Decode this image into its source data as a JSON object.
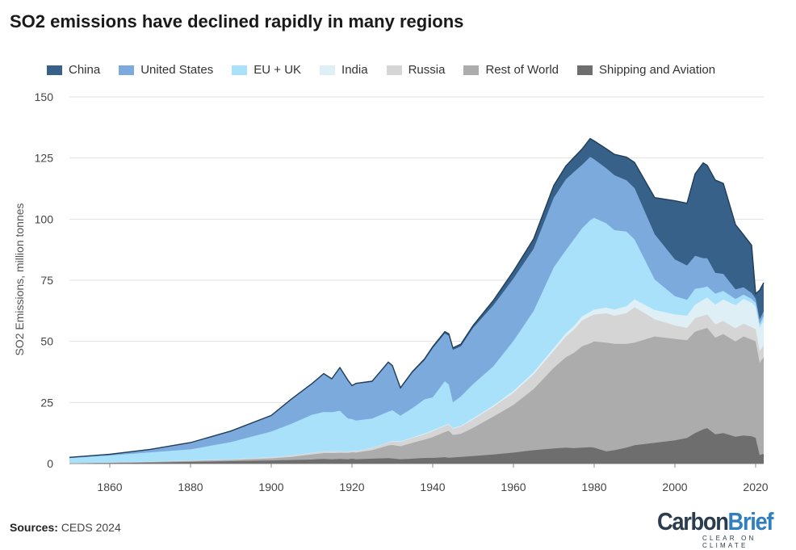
{
  "title": "SO2 emissions have declined rapidly in many regions",
  "source": {
    "label": "Sources:",
    "text": "CEDS 2024"
  },
  "logo": {
    "text_carbon": "Carbon",
    "text_brief": "Brief",
    "tagline": "CLEAR ON CLIMATE"
  },
  "chart_data": {
    "type": "area",
    "stacked": true,
    "title": "SO2 emissions have declined rapidly in many regions",
    "xlabel": "",
    "ylabel": "SO2 Emissions, million tonnes",
    "xlim": [
      1850,
      2022
    ],
    "ylim": [
      0,
      150
    ],
    "yticks": [
      0,
      25,
      50,
      75,
      100,
      125,
      150
    ],
    "xticks": [
      1860,
      1880,
      1900,
      1920,
      1940,
      1960,
      1980,
      2000,
      2020
    ],
    "grid": "horizontal",
    "legend_position": "top",
    "x": [
      1850,
      1860,
      1870,
      1880,
      1890,
      1900,
      1905,
      1910,
      1913,
      1915,
      1917,
      1919,
      1920,
      1921,
      1925,
      1929,
      1930,
      1932,
      1935,
      1938,
      1940,
      1943,
      1944,
      1945,
      1947,
      1950,
      1955,
      1960,
      1965,
      1970,
      1973,
      1975,
      1977,
      1979,
      1980,
      1983,
      1985,
      1988,
      1990,
      1995,
      2000,
      2003,
      2005,
      2007,
      2008,
      2010,
      2012,
      2015,
      2017,
      2019,
      2020,
      2021,
      2022
    ],
    "series": [
      {
        "name": "Shipping and Aviation",
        "color": "#6e6e6e",
        "values": [
          0.1,
          0.2,
          0.4,
          0.7,
          1.0,
          1.3,
          1.5,
          1.7,
          1.9,
          1.8,
          1.9,
          1.8,
          2.0,
          1.8,
          2.0,
          2.2,
          2.1,
          1.8,
          2.0,
          2.3,
          2.3,
          2.6,
          2.4,
          2.5,
          2.7,
          3.1,
          3.7,
          4.5,
          5.5,
          6.2,
          6.5,
          6.3,
          6.5,
          6.7,
          6.5,
          5.0,
          5.5,
          6.5,
          7.5,
          8.5,
          9.5,
          10.5,
          12.5,
          14.0,
          14.5,
          12.0,
          12.5,
          11.0,
          11.5,
          11.2,
          10.5,
          3.5,
          4.0
        ]
      },
      {
        "name": "Rest of World",
        "color": "#acacac",
        "values": [
          0.1,
          0.2,
          0.3,
          0.4,
          0.5,
          0.8,
          1.2,
          2.0,
          2.4,
          2.5,
          2.5,
          2.6,
          2.6,
          2.7,
          3.5,
          5.2,
          5.5,
          5.3,
          6.5,
          7.5,
          8.5,
          10.3,
          11.0,
          9.2,
          9.5,
          11.5,
          15.5,
          19.5,
          25.0,
          33.0,
          37.0,
          39.0,
          41.5,
          42.5,
          43.5,
          44.5,
          43.5,
          42.5,
          42.0,
          43.5,
          41.5,
          40.0,
          41.5,
          41.0,
          41.0,
          39.5,
          40.5,
          39.0,
          40.5,
          39.5,
          39.5,
          37.8,
          39.5
        ]
      },
      {
        "name": "Russia",
        "color": "#d5d5d5",
        "values": [
          0.05,
          0.1,
          0.1,
          0.2,
          0.3,
          0.4,
          0.5,
          0.6,
          0.7,
          0.6,
          0.6,
          0.4,
          0.5,
          0.5,
          0.8,
          1.2,
          1.5,
          1.8,
          2.0,
          2.2,
          2.5,
          2.5,
          2.6,
          2.5,
          3.0,
          3.5,
          4.0,
          5.0,
          6.0,
          7.0,
          8.5,
          9.5,
          10.5,
          11.0,
          11.0,
          12.0,
          11.5,
          12.5,
          14.5,
          7.0,
          5.5,
          5.0,
          5.5,
          5.5,
          5.5,
          5.5,
          5.3,
          5.3,
          5.3,
          5.1,
          5.0,
          4.8,
          4.8
        ]
      },
      {
        "name": "India",
        "color": "#def0f6",
        "values": [
          0.0,
          0.0,
          0.0,
          0.0,
          0.0,
          0.1,
          0.1,
          0.1,
          0.1,
          0.1,
          0.1,
          0.1,
          0.1,
          0.1,
          0.1,
          0.1,
          0.2,
          0.2,
          0.2,
          0.3,
          0.3,
          0.3,
          0.3,
          0.3,
          0.3,
          0.4,
          0.5,
          0.7,
          0.9,
          1.1,
          1.3,
          1.5,
          1.7,
          1.8,
          2.0,
          2.3,
          2.5,
          2.9,
          3.2,
          3.8,
          4.5,
          5.0,
          5.5,
          6.5,
          7.0,
          8.0,
          8.8,
          9.5,
          10.0,
          10.0,
          9.2,
          9.5,
          10.3
        ]
      },
      {
        "name": "EU + UK",
        "color": "#a9e1fb",
        "values": [
          2.0,
          2.8,
          3.8,
          4.5,
          7.0,
          10.5,
          13.0,
          15.5,
          16.0,
          16.0,
          16.5,
          13.5,
          13.0,
          12.5,
          12.0,
          12.5,
          12.5,
          10.5,
          12.0,
          14.0,
          13.5,
          18.0,
          16.0,
          10.5,
          12.0,
          14.0,
          16.0,
          20.5,
          25.0,
          33.0,
          34.0,
          35.5,
          36.0,
          37.5,
          37.5,
          34.5,
          32.5,
          30.5,
          24.5,
          12.5,
          7.5,
          6.5,
          6.5,
          5.0,
          4.5,
          4.5,
          3.5,
          2.5,
          1.8,
          1.6,
          1.5,
          1.5,
          1.8
        ]
      },
      {
        "name": "United States",
        "color": "#7daadc",
        "values": [
          0.3,
          0.5,
          1.2,
          2.8,
          4.5,
          6.5,
          10.0,
          12.5,
          15.5,
          13.5,
          17.5,
          15.5,
          13.5,
          15.0,
          15.0,
          20.0,
          18.0,
          11.0,
          14.5,
          16.0,
          20.0,
          19.5,
          20.0,
          21.5,
          20.5,
          23.0,
          25.0,
          25.5,
          25.5,
          28.5,
          29.0,
          27.5,
          26.0,
          26.0,
          24.0,
          22.5,
          22.5,
          21.0,
          21.0,
          18.5,
          15.0,
          14.0,
          13.5,
          12.0,
          11.5,
          8.5,
          7.0,
          4.0,
          3.0,
          2.4,
          1.8,
          1.8,
          2.0
        ]
      },
      {
        "name": "China",
        "color": "#376189",
        "values": [
          0.0,
          0.0,
          0.0,
          0.0,
          0.0,
          0.1,
          0.1,
          0.2,
          0.2,
          0.2,
          0.2,
          0.2,
          0.2,
          0.2,
          0.3,
          0.3,
          0.3,
          0.4,
          0.5,
          0.6,
          0.7,
          0.8,
          0.8,
          0.8,
          0.9,
          1.0,
          2.0,
          3.0,
          4.0,
          5.0,
          5.5,
          6.0,
          6.5,
          7.5,
          7.5,
          8.0,
          8.5,
          9.5,
          10.5,
          15.0,
          24.0,
          25.5,
          33.5,
          39.0,
          38.0,
          38.0,
          37.0,
          26.5,
          21.5,
          19.5,
          2.0,
          12.0,
          11.6
        ]
      }
    ]
  }
}
